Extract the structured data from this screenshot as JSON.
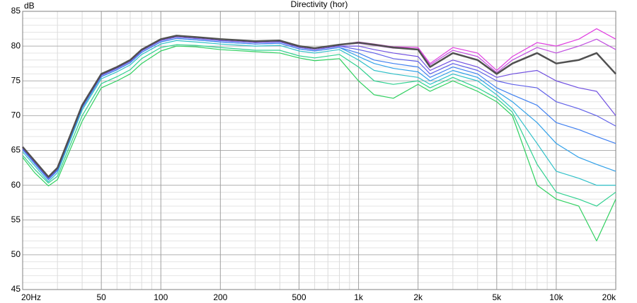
{
  "chart_data": {
    "type": "line",
    "title": "Directivity (hor)",
    "y_label": "dB",
    "xscale": "log",
    "grid": true,
    "xlim": [
      20,
      20000
    ],
    "ylim": [
      45,
      85
    ],
    "xticks": [
      {
        "value": 20,
        "label": "20Hz"
      },
      50,
      100,
      200,
      500,
      {
        "value": 1000,
        "label": "1k"
      },
      {
        "value": 2000,
        "label": "2k"
      },
      {
        "value": 5000,
        "label": "5k"
      },
      {
        "value": 10000,
        "label": "10k"
      },
      {
        "value": 20000,
        "label": "20k"
      }
    ],
    "xminorticks": [
      30,
      40,
      60,
      70,
      80,
      90,
      300,
      400,
      600,
      700,
      800,
      900,
      3000,
      4000,
      6000,
      7000,
      8000,
      9000
    ],
    "yticks": [
      45,
      50,
      55,
      60,
      65,
      70,
      75,
      80,
      85
    ],
    "yminorticks": [
      46,
      47,
      48,
      49,
      51,
      52,
      53,
      54,
      56,
      57,
      58,
      59,
      61,
      62,
      63,
      64,
      66,
      67,
      68,
      69,
      71,
      72,
      73,
      74,
      76,
      77,
      78,
      79,
      81,
      82,
      83,
      84
    ],
    "x": [
      20,
      23,
      27,
      30,
      40,
      50,
      60,
      70,
      80,
      100,
      120,
      150,
      200,
      300,
      400,
      500,
      600,
      800,
      1000,
      1200,
      1500,
      2000,
      2300,
      3000,
      4000,
      5000,
      6000,
      8000,
      10000,
      13000,
      16000,
      20000
    ],
    "series": [
      {
        "color": "#30d060",
        "values": [
          64,
          61.8,
          59.9,
          60.8,
          69.2,
          74,
          75,
          76,
          77.5,
          79.3,
          80,
          79.9,
          79.5,
          79.2,
          79,
          78.3,
          77.9,
          78.2,
          75,
          73,
          72.5,
          74.5,
          73.5,
          75,
          73.5,
          72,
          70,
          60,
          58,
          57,
          52,
          58
        ]
      },
      {
        "color": "#30d090",
        "values": [
          64.3,
          62.3,
          60.3,
          61.3,
          70,
          74.6,
          75.6,
          76.6,
          78.2,
          79.8,
          80.2,
          80.1,
          79.8,
          79.4,
          79.4,
          78.6,
          78.3,
          78.8,
          77,
          75,
          74.5,
          75,
          74,
          75.5,
          74,
          72.5,
          70.5,
          63,
          59,
          58,
          57,
          59
        ]
      },
      {
        "color": "#30c0c8",
        "values": [
          64.8,
          62.8,
          60.5,
          61.8,
          70.8,
          75.3,
          76.3,
          77.3,
          78.8,
          80.3,
          80.8,
          80.6,
          80.3,
          80,
          80.1,
          79.3,
          79,
          79.5,
          78,
          76.5,
          76,
          75.5,
          74.5,
          76,
          75,
          73,
          71,
          66,
          62,
          61,
          60,
          60
        ]
      },
      {
        "color": "#30a0e8",
        "values": [
          65.1,
          63.1,
          60.8,
          62.1,
          71.1,
          75.6,
          76.6,
          77.6,
          79.1,
          80.6,
          81.1,
          80.9,
          80.6,
          80.3,
          80.4,
          79.6,
          79.3,
          79.8,
          78.5,
          77.5,
          76.8,
          76.3,
          75,
          76.5,
          75.5,
          73.5,
          72,
          69,
          66,
          64,
          63,
          62
        ]
      },
      {
        "color": "#4080f0",
        "values": [
          65.1,
          63.1,
          60.8,
          62.1,
          71.1,
          75.6,
          76.6,
          77.6,
          79.1,
          80.6,
          81.1,
          80.9,
          80.6,
          80.3,
          80.4,
          79.6,
          79.3,
          79.8,
          79,
          78,
          77.5,
          77,
          75.5,
          77,
          76,
          74,
          73,
          71.5,
          69,
          68,
          67,
          66
        ]
      },
      {
        "color": "#6060e8",
        "values": [
          65.3,
          63.3,
          61,
          62.3,
          71.3,
          75.8,
          76.8,
          77.8,
          79.3,
          80.8,
          81.3,
          81.1,
          80.8,
          80.5,
          80.6,
          79.8,
          79.5,
          80,
          79.5,
          79,
          78.2,
          77.8,
          76,
          77.5,
          76.5,
          75,
          74.5,
          74,
          72,
          71,
          70,
          68.5
        ]
      },
      {
        "color": "#7050e0",
        "values": [
          65.3,
          63.3,
          61,
          62.3,
          71.3,
          75.8,
          76.8,
          77.8,
          79.3,
          80.8,
          81.3,
          81.1,
          80.8,
          80.5,
          80.6,
          79.8,
          79.5,
          80,
          80,
          79.5,
          79,
          78.5,
          76.5,
          78,
          77,
          75.5,
          76,
          76.5,
          75,
          74,
          73.5,
          70
        ]
      },
      {
        "color": "#c050e0",
        "values": [
          65.5,
          63.5,
          61.2,
          62.5,
          71.5,
          76,
          77,
          78,
          79.5,
          81,
          81.5,
          81.3,
          81,
          80.7,
          80.8,
          80,
          79.7,
          80.2,
          80.4,
          80.1,
          79.7,
          79.6,
          77.3,
          79.4,
          78.5,
          76.2,
          78,
          79.8,
          79,
          80,
          81,
          79.5
        ]
      },
      {
        "color": "#e040e0",
        "values": [
          65.5,
          63.5,
          61.2,
          62.5,
          71.5,
          76,
          77,
          78,
          79.5,
          81,
          81.5,
          81.3,
          81,
          80.7,
          80.8,
          80,
          79.7,
          80.2,
          80.6,
          80.3,
          79.9,
          79.8,
          77.5,
          79.8,
          79,
          76.5,
          78.5,
          80.5,
          80,
          81,
          82.5,
          81
        ]
      },
      {
        "color": "#505050",
        "line_width": 2.5,
        "values": [
          65.5,
          63.5,
          61.2,
          62.5,
          71.5,
          76,
          77,
          78,
          79.5,
          81,
          81.5,
          81.3,
          81,
          80.7,
          80.8,
          80,
          79.7,
          80.2,
          80.5,
          80.2,
          79.8,
          79.5,
          77,
          79,
          78,
          76,
          77.5,
          79,
          77.5,
          78,
          79,
          76
        ]
      }
    ]
  }
}
